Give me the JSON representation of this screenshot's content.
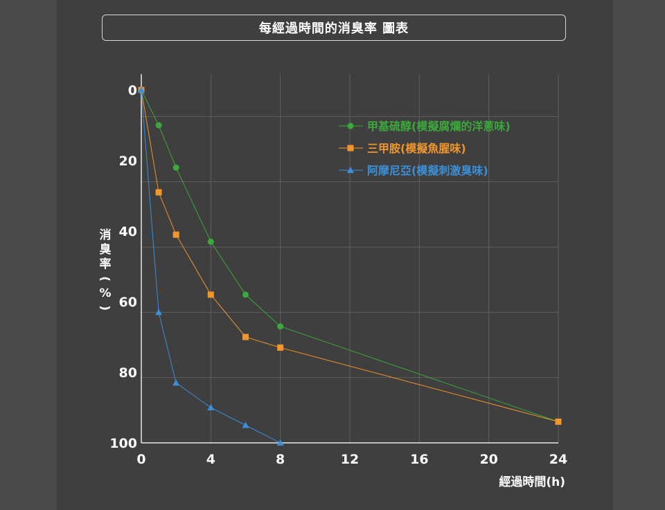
{
  "chart_data": {
    "type": "line",
    "title": "每經過時間的消臭率 圖表",
    "xlabel": "經過時間(h)",
    "ylabel": "消臭率(%)",
    "xlim": [
      0,
      24
    ],
    "ylim": [
      0,
      100
    ],
    "y_inverted": true,
    "x_ticks": [
      0,
      4,
      8,
      12,
      16,
      20,
      24
    ],
    "y_ticks": [
      0,
      20,
      40,
      60,
      80,
      100
    ],
    "grid": true,
    "legend_position": "top-right",
    "series": [
      {
        "name": "甲基硫醇(模擬腐爛的洋蔥味)",
        "color": "#3aa83a",
        "marker": "circle",
        "x": [
          0,
          1,
          2,
          4,
          6,
          8,
          24
        ],
        "y": [
          0,
          10,
          22,
          43,
          58,
          67,
          94
        ]
      },
      {
        "name": "三甲胺(模擬魚腥味)",
        "color": "#f0962c",
        "marker": "square",
        "x": [
          0,
          1,
          2,
          4,
          6,
          8,
          24
        ],
        "y": [
          0,
          29,
          41,
          58,
          70,
          73,
          94
        ]
      },
      {
        "name": "阿摩尼亞(模擬刺激臭味)",
        "color": "#3a8fd8",
        "marker": "triangle",
        "x": [
          0,
          1,
          2,
          4,
          6,
          8
        ],
        "y": [
          0,
          63,
          83,
          90,
          95,
          100
        ]
      }
    ]
  }
}
